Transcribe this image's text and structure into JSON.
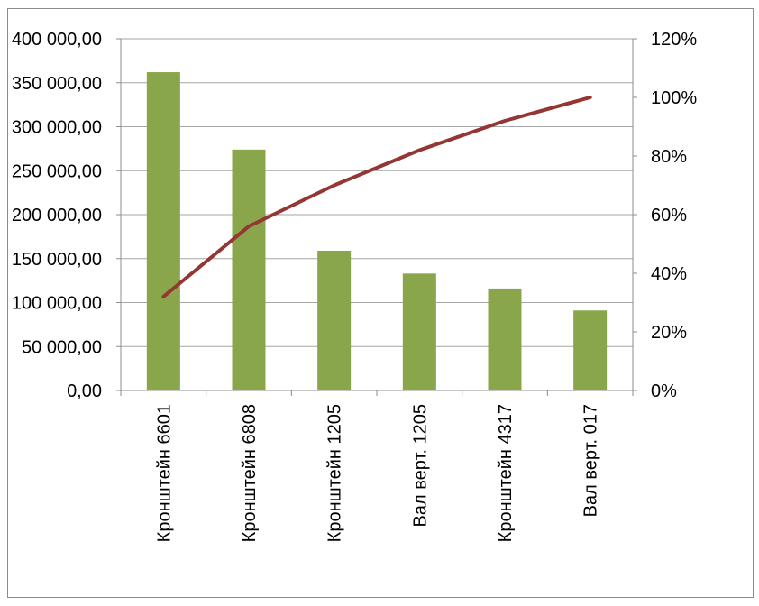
{
  "chart_data": {
    "type": "bar",
    "title": "",
    "xlabel": "",
    "ylabel": "",
    "categories": [
      "Кронштейн 6601",
      "Кронштейн 6808",
      "Кронштейн 1205",
      "Вал верт. 1205",
      "Кронштейн 4317",
      "Вал верт. 017"
    ],
    "series": [
      {
        "type": "bar",
        "axis": "left",
        "values": [
          362000,
          274000,
          159000,
          133000,
          116000,
          91000
        ]
      },
      {
        "type": "line",
        "axis": "right",
        "values": [
          0.32,
          0.56,
          0.7,
          0.82,
          0.92,
          1.0
        ]
      }
    ],
    "ylim": [
      0,
      400000
    ],
    "y2lim": [
      0,
      1.2
    ],
    "yticks": [
      "0,00",
      "50 000,00",
      "100 000,00",
      "150 000,00",
      "200 000,00",
      "250 000,00",
      "300 000,00",
      "350 000,00",
      "400 000,00"
    ],
    "y2ticks": [
      "0%",
      "20%",
      "40%",
      "60%",
      "80%",
      "100%",
      "120%"
    ],
    "grid": true,
    "legend": "none",
    "colors": {
      "bar": "#8aa64a",
      "line": "#943634"
    }
  }
}
